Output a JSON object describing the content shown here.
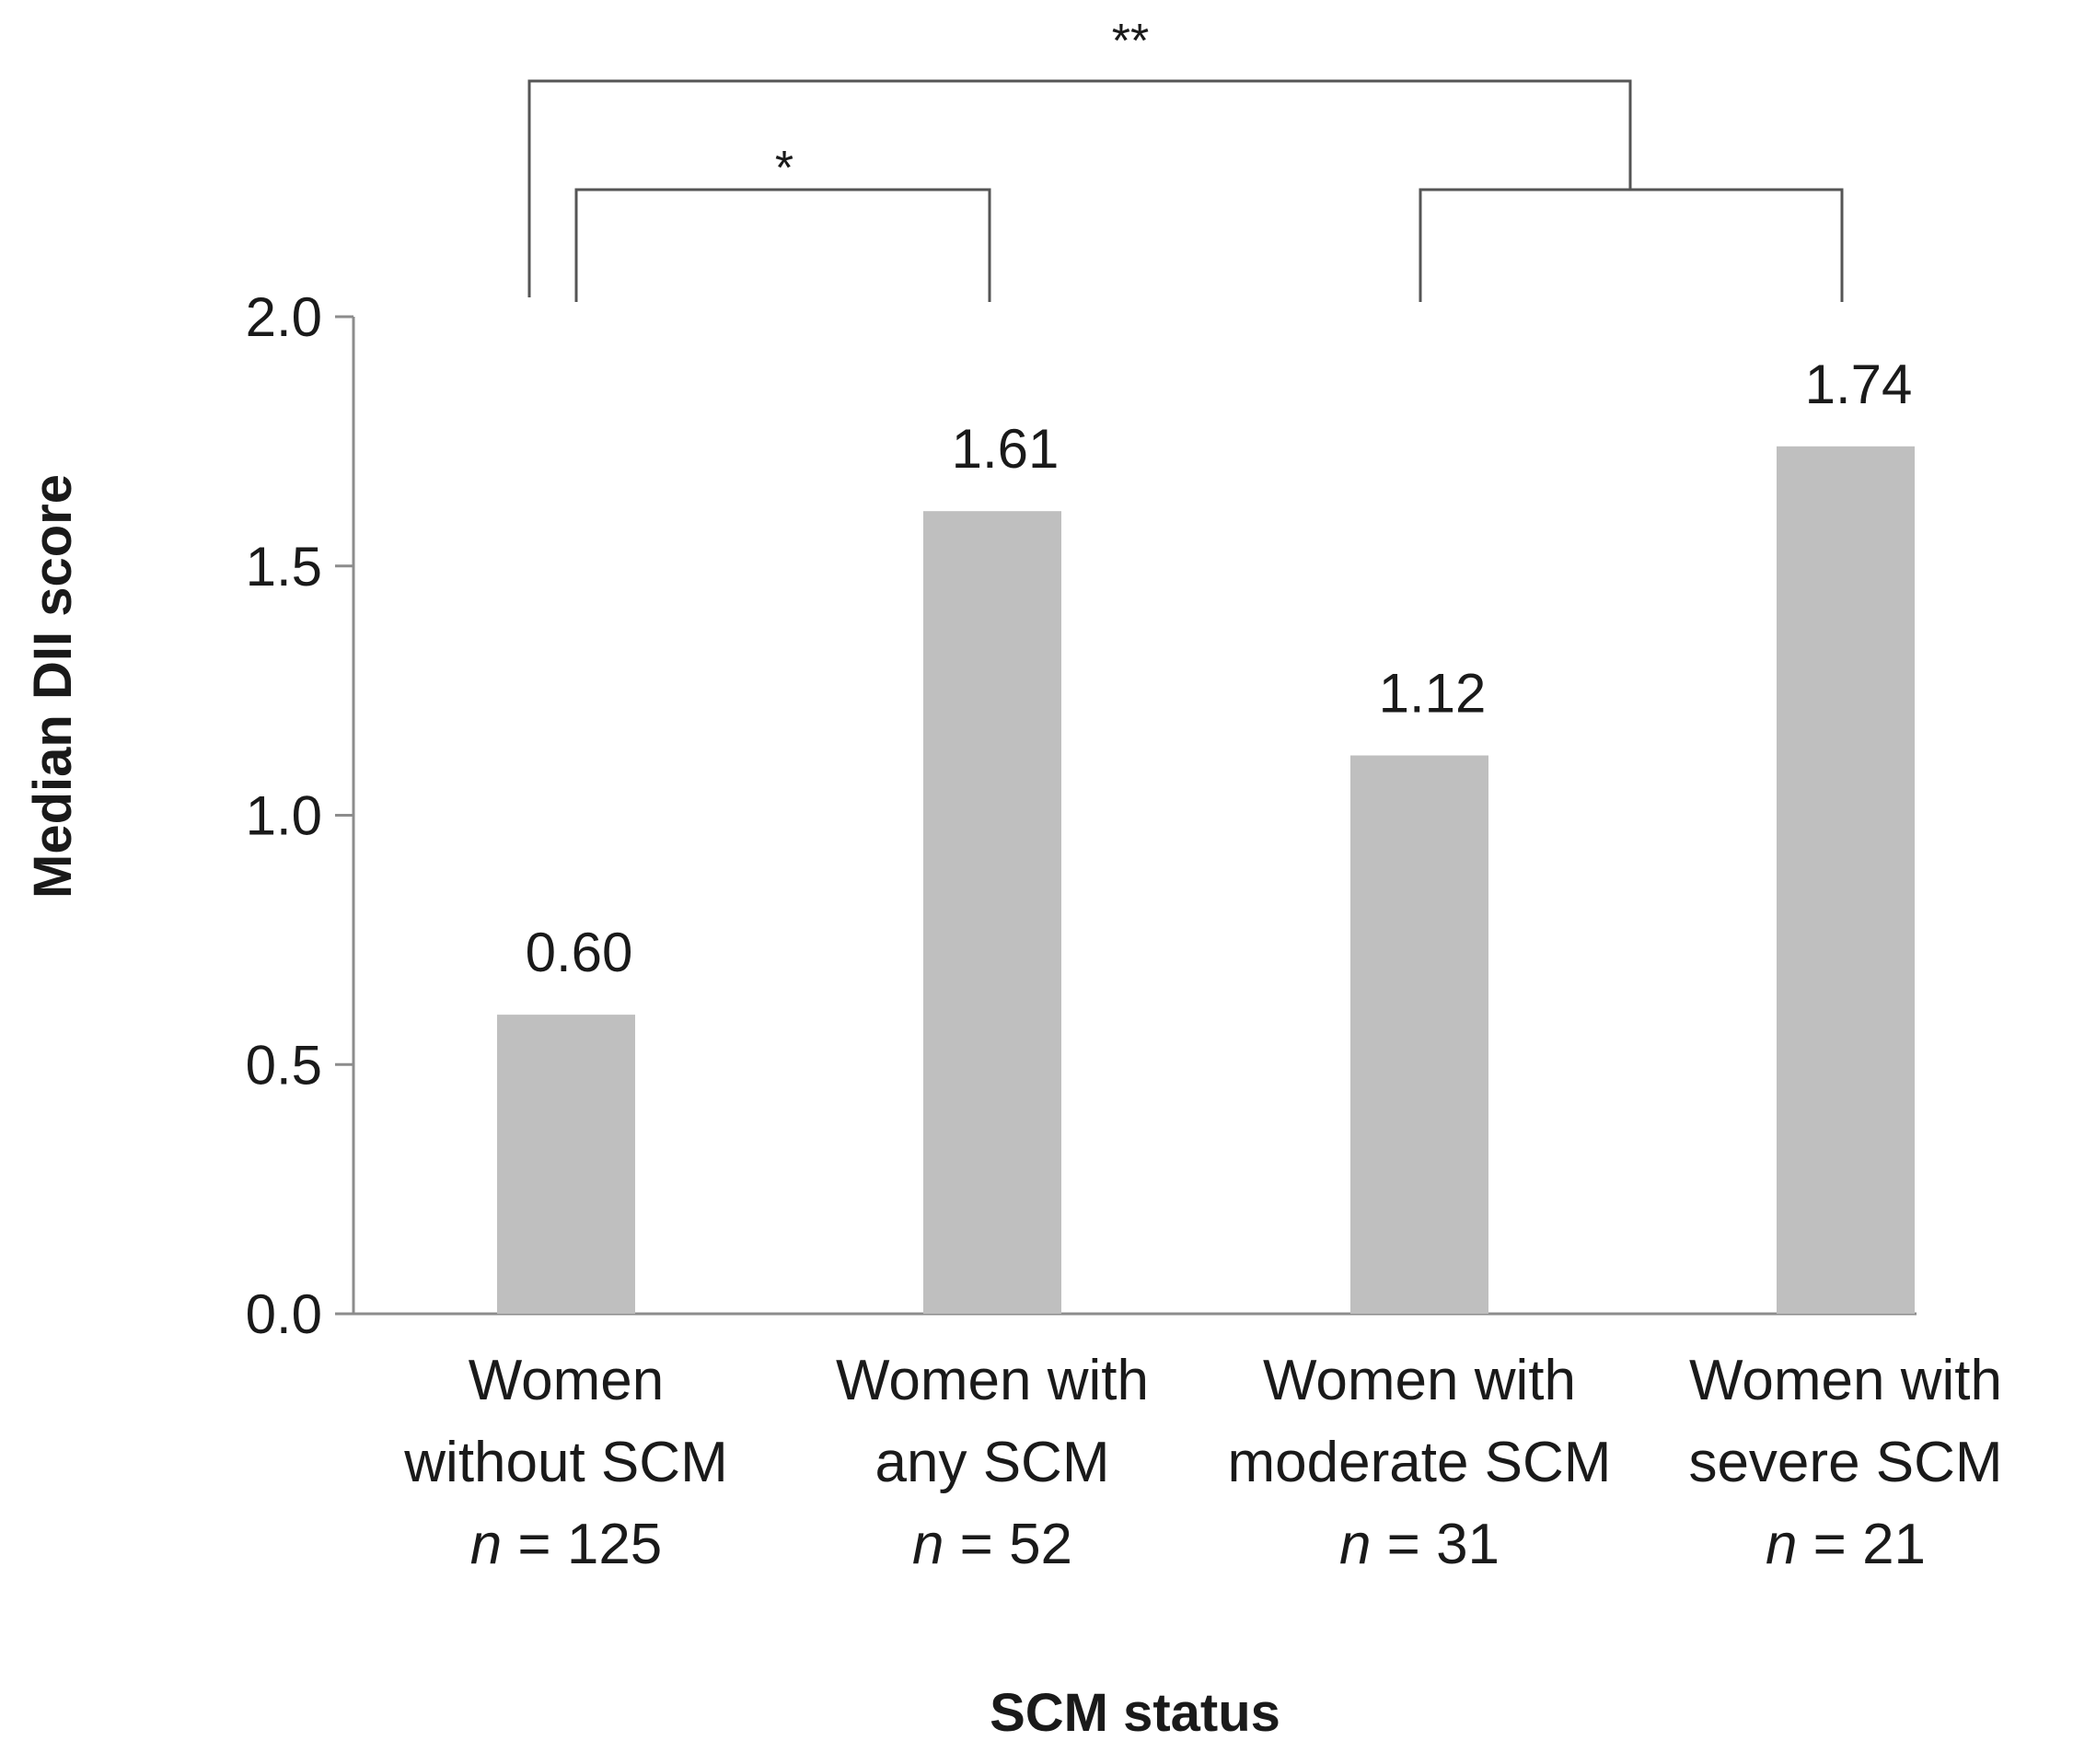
{
  "chart_data": {
    "type": "bar",
    "title": "",
    "xlabel": "SCM status",
    "ylabel": "Median DII score",
    "ylim": [
      0,
      2.0
    ],
    "yticks": [
      "0.0",
      "0.5",
      "1.0",
      "1.5",
      "2.0"
    ],
    "grid": false,
    "bar_color": "#bfbfbf",
    "axis_color": "#8c8c8c",
    "categories": [
      {
        "line1": "Women",
        "line2": "without SCM",
        "n_prefix": "n",
        "n_value": " = 125"
      },
      {
        "line1": "Women with",
        "line2": "any SCM",
        "n_prefix": "n",
        "n_value": " = 52"
      },
      {
        "line1": "Women with",
        "line2": "moderate SCM",
        "n_prefix": "n",
        "n_value": " = 31"
      },
      {
        "line1": "Women with",
        "line2": "severe SCM",
        "n_prefix": "n",
        "n_value": " = 21"
      }
    ],
    "values": [
      0.6,
      1.61,
      1.12,
      1.74
    ],
    "value_labels": [
      "0.60",
      "1.61",
      "1.12",
      "1.74"
    ],
    "significance": [
      {
        "label": "*",
        "from": [
          0
        ],
        "to": [
          1
        ]
      },
      {
        "label": "**",
        "from": [
          0
        ],
        "to": [
          2,
          3
        ]
      }
    ]
  }
}
